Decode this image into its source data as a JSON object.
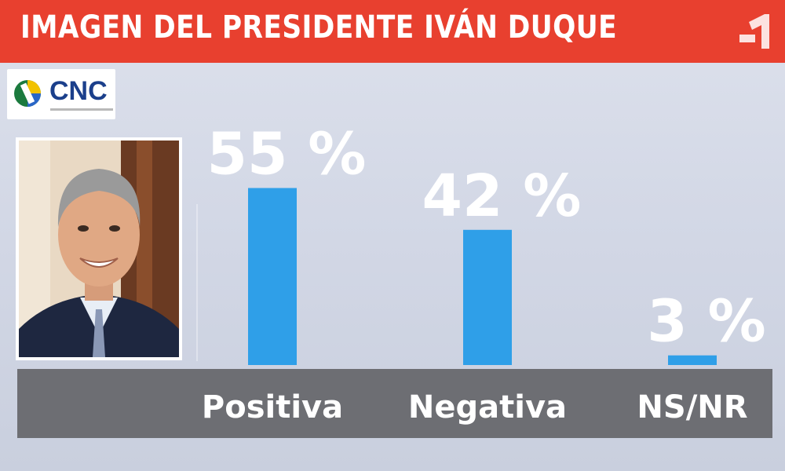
{
  "header": {
    "title": "IMAGEN DEL PRESIDENTE IVÁN DUQUE",
    "accent_color": "#e8402f",
    "corner_icon": "channel-1-icon"
  },
  "logo": {
    "text": "CNC",
    "icon": "cnc-logo-icon"
  },
  "photo": {
    "icon": "president-portrait-icon"
  },
  "chart_data": {
    "type": "bar",
    "categories": [
      "Positiva",
      "Negativa",
      "NS/NR"
    ],
    "values": [
      55,
      42,
      3
    ],
    "value_labels": [
      "55 %",
      "42 %",
      "3 %"
    ],
    "title": "IMAGEN DEL PRESIDENTE IVÁN DUQUE",
    "xlabel": "",
    "ylabel": "",
    "ylim": [
      0,
      60
    ],
    "bar_color": "#2f9fe8",
    "axis_band_color": "#6d6e73",
    "grid": false
  }
}
